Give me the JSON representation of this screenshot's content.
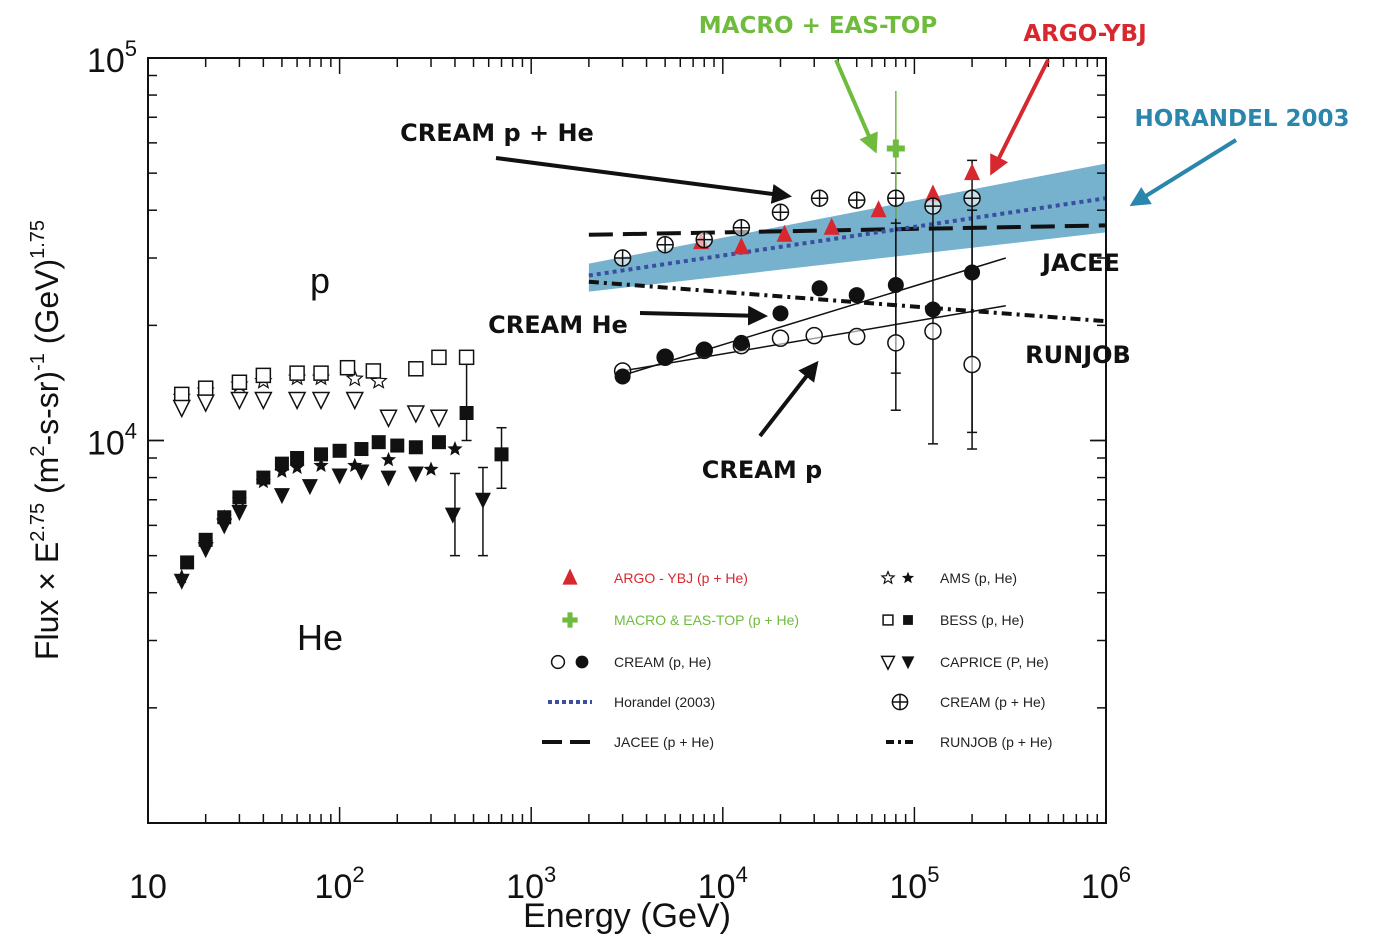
{
  "chart_data": {
    "type": "scatter",
    "title": "",
    "xlabel": "Energy (GeV)",
    "ylabel_parts": {
      "main": "Flux × E",
      "exp": "2.75",
      "units": " (m",
      "u1": "2",
      "u2": "-s-sr)",
      "u3": "-1",
      "u4": " (GeV)",
      "u5": "1.75"
    },
    "x_scale": "log",
    "y_scale": "log",
    "xlim": [
      10,
      1000000
    ],
    "ylim": [
      1000,
      100000
    ],
    "x_ticks": [
      {
        "value": 10,
        "base": "10",
        "exp": ""
      },
      {
        "value": 100,
        "base": "10",
        "exp": "2"
      },
      {
        "value": 1000,
        "base": "10",
        "exp": "3"
      },
      {
        "value": 10000,
        "base": "10",
        "exp": "4"
      },
      {
        "value": 100000,
        "base": "10",
        "exp": "5"
      },
      {
        "value": 1000000,
        "base": "10",
        "exp": "6"
      }
    ],
    "y_ticks": [
      {
        "value": 10000,
        "base": "10",
        "exp": "4"
      },
      {
        "value": 100000,
        "base": "10",
        "exp": "5"
      }
    ],
    "region_labels": [
      {
        "text": "p",
        "x": 140,
        "y": 20000
      },
      {
        "text": "He",
        "x": 140,
        "y": 3300
      }
    ],
    "series": [
      {
        "name": "ARGO - YBJ (p + He)",
        "marker": "triangle-filled",
        "color": "#d7282f",
        "points": [
          [
            7700,
            33000
          ],
          [
            12500,
            32000
          ],
          [
            21000,
            34500
          ],
          [
            37000,
            36000
          ],
          [
            65000,
            40000
          ],
          [
            125000,
            44000
          ],
          [
            200000,
            50000
          ]
        ]
      },
      {
        "name": "MACRO & EAS-TOP (p + He)",
        "marker": "plus",
        "color": "#6fbb3e",
        "points": [
          [
            80000,
            58000,
            38000,
            82000
          ]
        ]
      },
      {
        "name": "CREAM (p, He) open",
        "marker": "circle-open",
        "color": "#111",
        "points": [
          [
            3000,
            15200
          ],
          [
            5000,
            16500
          ],
          [
            8000,
            17200
          ],
          [
            12500,
            17700
          ],
          [
            20000,
            18500
          ],
          [
            30000,
            18800
          ],
          [
            50000,
            18700
          ],
          [
            80000,
            18000
          ],
          [
            125000,
            19300
          ],
          [
            200000,
            15800
          ]
        ]
      },
      {
        "name": "CREAM (p, He) filled",
        "marker": "circle-filled",
        "color": "#111",
        "points": [
          [
            3000,
            14700
          ],
          [
            5000,
            16500
          ],
          [
            8000,
            17300
          ],
          [
            12500,
            18000
          ],
          [
            20000,
            21500
          ],
          [
            32000,
            25000
          ],
          [
            50000,
            24000
          ],
          [
            80000,
            25500
          ],
          [
            125000,
            22000
          ],
          [
            200000,
            27500
          ]
        ]
      },
      {
        "name": "CREAM (p + He)",
        "marker": "circle-plus",
        "color": "#111",
        "points": [
          [
            3000,
            30000
          ],
          [
            5000,
            32500
          ],
          [
            8000,
            33500
          ],
          [
            12500,
            36000
          ],
          [
            20000,
            39500
          ],
          [
            32000,
            43000
          ],
          [
            50000,
            42500
          ],
          [
            80000,
            43000
          ],
          [
            125000,
            41000
          ],
          [
            200000,
            43000
          ]
        ]
      },
      {
        "name": "AMS (p, He) open",
        "marker": "star-open",
        "color": "#111",
        "points": [
          [
            15,
            13000
          ],
          [
            20,
            13500
          ],
          [
            30,
            14000
          ],
          [
            40,
            14300
          ],
          [
            60,
            14600
          ],
          [
            80,
            14600
          ],
          [
            120,
            14500
          ],
          [
            160,
            14300
          ]
        ]
      },
      {
        "name": "AMS (p, He) filled",
        "marker": "star-filled",
        "color": "#111",
        "points": [
          [
            15,
            4400
          ],
          [
            20,
            5400
          ],
          [
            25,
            6300
          ],
          [
            30,
            7000
          ],
          [
            40,
            7800
          ],
          [
            50,
            8300
          ],
          [
            60,
            8500
          ],
          [
            80,
            8600
          ],
          [
            120,
            8600
          ],
          [
            180,
            8900
          ],
          [
            300,
            8400
          ],
          [
            400,
            9500
          ]
        ]
      },
      {
        "name": "BESS (p, He) open",
        "marker": "square-open",
        "color": "#111",
        "points": [
          [
            15,
            13200
          ],
          [
            20,
            13700
          ],
          [
            30,
            14200
          ],
          [
            40,
            14800
          ],
          [
            60,
            15000
          ],
          [
            80,
            15000
          ],
          [
            110,
            15500
          ],
          [
            150,
            15200
          ],
          [
            250,
            15400
          ],
          [
            330,
            16500
          ],
          [
            460,
            16500
          ]
        ]
      },
      {
        "name": "BESS (p, He) filled",
        "marker": "square-filled",
        "color": "#111",
        "points": [
          [
            16,
            4800
          ],
          [
            20,
            5500
          ],
          [
            25,
            6300
          ],
          [
            30,
            7100
          ],
          [
            40,
            8000
          ],
          [
            50,
            8700
          ],
          [
            60,
            9000
          ],
          [
            80,
            9200
          ],
          [
            100,
            9400
          ],
          [
            130,
            9500
          ],
          [
            160,
            9900
          ],
          [
            200,
            9700
          ],
          [
            250,
            9600
          ],
          [
            330,
            9900
          ],
          [
            460,
            11800
          ],
          [
            700,
            9200
          ]
        ]
      },
      {
        "name": "CAPRICE (P, He) open",
        "marker": "tri-down-open",
        "color": "#111",
        "points": [
          [
            15,
            12200
          ],
          [
            20,
            12600
          ],
          [
            30,
            12800
          ],
          [
            40,
            12800
          ],
          [
            60,
            12800
          ],
          [
            80,
            12800
          ],
          [
            120,
            12800
          ],
          [
            180,
            11500
          ],
          [
            250,
            11800
          ],
          [
            330,
            11500
          ]
        ]
      },
      {
        "name": "CAPRICE (P, He) filled",
        "marker": "tri-down-filled",
        "color": "#111",
        "points": [
          [
            15,
            4300
          ],
          [
            20,
            5200
          ],
          [
            25,
            6000
          ],
          [
            30,
            6500
          ],
          [
            50,
            7200
          ],
          [
            70,
            7600
          ],
          [
            100,
            8100
          ],
          [
            130,
            8300
          ],
          [
            180,
            8000
          ],
          [
            250,
            8200
          ],
          [
            390,
            6400
          ],
          [
            560,
            7000
          ]
        ]
      }
    ],
    "error_bars": [
      {
        "x": 80000,
        "lo": 12000,
        "hi": 50000
      },
      {
        "x": 125000,
        "lo": 9800,
        "hi": 43000
      },
      {
        "x": 200000,
        "lo": 9500,
        "hi": 54000
      },
      {
        "x": 200000,
        "lo": 10500,
        "hi": 40000
      },
      {
        "x": 80000,
        "lo": 15000,
        "hi": 37000
      },
      {
        "x": 400,
        "lo": 5000,
        "hi": 8200
      },
      {
        "x": 560,
        "lo": 5000,
        "hi": 8500
      },
      {
        "x": 700,
        "lo": 7500,
        "hi": 10800
      },
      {
        "x": 460,
        "lo": 10000,
        "hi": 17000
      }
    ],
    "lines": [
      {
        "name": "JACEE (p + He)",
        "style": "dash",
        "color": "#111",
        "points": [
          [
            2000,
            34500
          ],
          [
            1000000,
            36500
          ]
        ]
      },
      {
        "name": "RUNJOB (p + He)",
        "style": "dashdot",
        "color": "#111",
        "points": [
          [
            2000,
            26000
          ],
          [
            1000000,
            20500
          ]
        ]
      },
      {
        "name": "Horandel (2003)",
        "style": "dot",
        "color": "#3a4fa0",
        "points": [
          [
            2000,
            27000
          ],
          [
            1000000,
            43000
          ]
        ]
      },
      {
        "name": "fit He",
        "style": "solid",
        "color": "#111",
        "points": [
          [
            3000,
            14800
          ],
          [
            300000,
            30000
          ]
        ]
      },
      {
        "name": "fit p",
        "style": "solid",
        "color": "#111",
        "points": [
          [
            3000,
            15200
          ],
          [
            300000,
            22500
          ]
        ]
      }
    ],
    "band": {
      "color": "#5ea5c4",
      "lower": [
        [
          2000,
          24500
        ],
        [
          1000000,
          35000
        ]
      ],
      "upper": [
        [
          2000,
          29000
        ],
        [
          1000000,
          53000
        ]
      ]
    },
    "legend_left": [
      {
        "label": "ARGO - YBJ (p + He)",
        "marker": "triangle-filled",
        "color": "#d7282f"
      },
      {
        "label": "MACRO & EAS-TOP (p + He)",
        "marker": "plus",
        "color": "#6fbb3e"
      },
      {
        "label": "CREAM (p, He)",
        "marker": "circle-pair",
        "color": "#111"
      },
      {
        "label": "Horandel (2003)",
        "marker": "dot-line",
        "color": "#3a4fa0"
      },
      {
        "label": "JACEE (p + He)",
        "marker": "dash-line",
        "color": "#111"
      }
    ],
    "legend_right": [
      {
        "label": "AMS (p, He)",
        "marker": "star-pair",
        "color": "#111"
      },
      {
        "label": "BESS (p, He)",
        "marker": "square-pair",
        "color": "#111"
      },
      {
        "label": "CAPRICE (P, He)",
        "marker": "tri-pair",
        "color": "#111"
      },
      {
        "label": "CREAM (p + He)",
        "marker": "circle-plus",
        "color": "#111"
      },
      {
        "label": "RUNJOB (p + He)",
        "marker": "dashdot-line",
        "color": "#111"
      }
    ],
    "annotations": [
      {
        "text": "MACRO + EAS-TOP",
        "color": "#6fbb3e"
      },
      {
        "text": "ARGO-YBJ",
        "color": "#d7282f"
      },
      {
        "text": "HORANDEL 2003",
        "color": "#2a86ad"
      },
      {
        "text": "CREAM p + He",
        "color": "#111"
      },
      {
        "text": "JACEE",
        "color": "#111"
      },
      {
        "text": "CREAM He",
        "color": "#111"
      },
      {
        "text": "RUNJOB",
        "color": "#111"
      },
      {
        "text": "CREAM p",
        "color": "#111"
      }
    ]
  }
}
